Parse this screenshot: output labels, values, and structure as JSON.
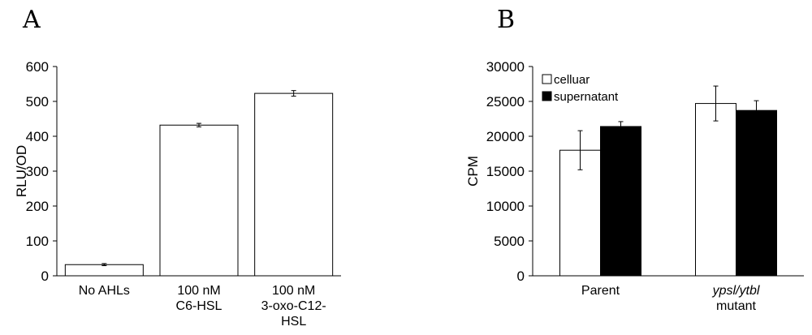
{
  "panels": {
    "a": "A",
    "b": "B"
  },
  "chart_data": [
    {
      "type": "bar",
      "panel": "A",
      "title": "",
      "xlabel": "",
      "ylabel": "RLU/OD",
      "ylim": [
        0,
        600
      ],
      "yticks": [
        0,
        100,
        200,
        300,
        400,
        500,
        600
      ],
      "categories": [
        [
          "No AHLs"
        ],
        [
          "100 nM",
          "C6-HSL"
        ],
        [
          "100 nM",
          "3-oxo-C12-",
          "HSL"
        ]
      ],
      "values": [
        32,
        432,
        523
      ],
      "errors": [
        3,
        5,
        8
      ],
      "bar_color": "#ffffff"
    },
    {
      "type": "bar",
      "panel": "B",
      "title": "",
      "xlabel": "",
      "ylabel": "CPM",
      "ylim": [
        0,
        30000
      ],
      "yticks": [
        0,
        5000,
        10000,
        15000,
        20000,
        25000,
        30000
      ],
      "categories": [
        [
          "Parent"
        ],
        [
          "ypsl/ytbl",
          "mutant"
        ]
      ],
      "series": [
        {
          "name": "celluar",
          "color": "#ffffff",
          "values": [
            18000,
            24700
          ],
          "errors": [
            2800,
            2500
          ]
        },
        {
          "name": "supernatant",
          "color": "#000000",
          "values": [
            21400,
            23700
          ],
          "errors": [
            700,
            1400
          ]
        }
      ],
      "legend": "top-left"
    }
  ]
}
